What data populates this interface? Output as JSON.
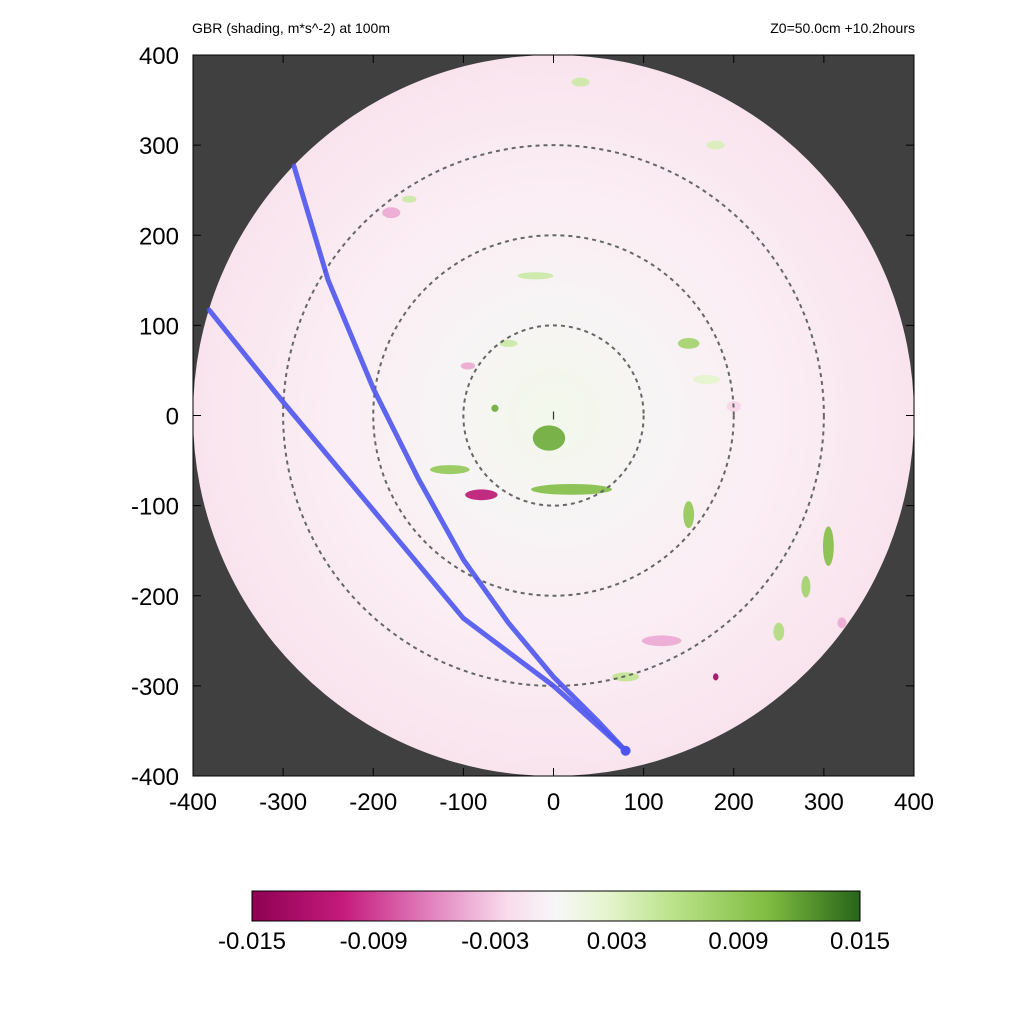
{
  "header": {
    "title": "GBR (shading, m*s^-2) at 100m",
    "info": "Z0=50.0cm  +10.2hours"
  },
  "colors": {
    "outside_mask": "#404040",
    "track": "#4d55f0",
    "range_rings": "#666666",
    "negative": "#8e0152",
    "neutral": "#f7f7f7",
    "positive": "#276419"
  },
  "chart_data": {
    "type": "heatmap",
    "title": "GBR (shading, m*s^-2) at 100m",
    "xlim": [
      -400,
      400
    ],
    "ylim": [
      -400,
      400
    ],
    "x_ticks": [
      "-400",
      "-300",
      "-200",
      "-100",
      "0",
      "100",
      "200",
      "300",
      "400"
    ],
    "y_ticks": [
      "400",
      "300",
      "200",
      "100",
      "0",
      "-100",
      "-200",
      "-300",
      "-400"
    ],
    "domain_radius": 400,
    "range_rings": [
      100,
      200,
      300
    ],
    "tracks": [
      [
        [
          -382,
          117
        ],
        [
          -300,
          15
        ],
        [
          -200,
          -105
        ],
        [
          -100,
          -225
        ],
        [
          0,
          -300
        ],
        [
          80,
          -372
        ]
      ],
      [
        [
          -288,
          277
        ],
        [
          -250,
          150
        ],
        [
          -200,
          30
        ],
        [
          -150,
          -70
        ],
        [
          -100,
          -160
        ],
        [
          -50,
          -230
        ],
        [
          0,
          -290
        ],
        [
          50,
          -340
        ],
        [
          80,
          -372
        ]
      ]
    ],
    "colorbar": {
      "min": -0.015,
      "max": 0.015,
      "tick_labels": [
        "-0.015",
        "-0.009",
        "-0.003",
        "0.003",
        "0.009",
        "0.015"
      ]
    },
    "features": [
      {
        "x": -5,
        "y": -25,
        "rx": 18,
        "ry": 14,
        "value": 0.012
      },
      {
        "x": 20,
        "y": -82,
        "rx": 45,
        "ry": 6,
        "value": 0.011
      },
      {
        "x": -80,
        "y": -88,
        "rx": 18,
        "ry": 6,
        "value": -0.012
      },
      {
        "x": -115,
        "y": -60,
        "rx": 22,
        "ry": 5,
        "value": 0.01
      },
      {
        "x": 150,
        "y": -110,
        "rx": 6,
        "ry": 15,
        "value": 0.01
      },
      {
        "x": 305,
        "y": -145,
        "rx": 6,
        "ry": 22,
        "value": 0.011
      },
      {
        "x": 280,
        "y": -190,
        "rx": 5,
        "ry": 12,
        "value": 0.009
      },
      {
        "x": 250,
        "y": -240,
        "rx": 6,
        "ry": 10,
        "value": 0.008
      },
      {
        "x": 120,
        "y": -250,
        "rx": 22,
        "ry": 6,
        "value": -0.006
      },
      {
        "x": 80,
        "y": -290,
        "rx": 15,
        "ry": 5,
        "value": 0.007
      },
      {
        "x": 150,
        "y": 80,
        "rx": 12,
        "ry": 6,
        "value": 0.009
      },
      {
        "x": -20,
        "y": 155,
        "rx": 20,
        "ry": 4,
        "value": 0.006
      },
      {
        "x": -50,
        "y": 80,
        "rx": 10,
        "ry": 4,
        "value": 0.006
      },
      {
        "x": -180,
        "y": 225,
        "rx": 10,
        "ry": 6,
        "value": -0.006
      },
      {
        "x": -160,
        "y": 240,
        "rx": 8,
        "ry": 4,
        "value": 0.006
      },
      {
        "x": 30,
        "y": 370,
        "rx": 10,
        "ry": 5,
        "value": 0.006
      },
      {
        "x": 180,
        "y": 300,
        "rx": 10,
        "ry": 5,
        "value": 0.005
      },
      {
        "x": -95,
        "y": 55,
        "rx": 8,
        "ry": 4,
        "value": -0.006
      },
      {
        "x": 200,
        "y": 10,
        "rx": 8,
        "ry": 6,
        "value": -0.004
      },
      {
        "x": -65,
        "y": 8,
        "rx": 4,
        "ry": 4,
        "value": 0.012
      },
      {
        "x": 170,
        "y": 40,
        "rx": 15,
        "ry": 5,
        "value": 0.004
      },
      {
        "x": 320,
        "y": -230,
        "rx": 5,
        "ry": 6,
        "value": -0.006
      },
      {
        "x": 180,
        "y": -290,
        "rx": 3,
        "ry": 4,
        "value": -0.014
      }
    ]
  }
}
